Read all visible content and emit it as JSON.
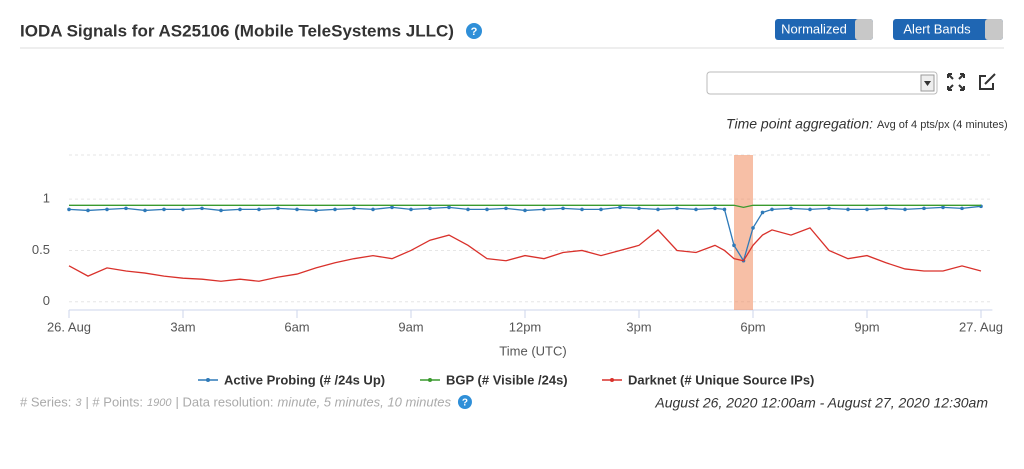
{
  "header": {
    "title": "IODA Signals for AS25106 (Mobile TeleSystems JLLC)",
    "buttons": [
      "Normalized",
      "Alert Bands"
    ]
  },
  "aggregation": {
    "label": "Time point aggregation:",
    "detail": "Avg of 4 pts/px (4 minutes)"
  },
  "chart_data": {
    "type": "line",
    "x": [
      0,
      0.5,
      1,
      1.5,
      2,
      2.5,
      3,
      3.5,
      4,
      4.5,
      5,
      5.5,
      6,
      6.5,
      7,
      7.5,
      8,
      8.5,
      9,
      9.5,
      10,
      10.5,
      11,
      11.5,
      12,
      12.5,
      13,
      13.5,
      14,
      14.5,
      15,
      15.5,
      16,
      16.5,
      17,
      17.25,
      17.5,
      17.75,
      18,
      18.25,
      18.5,
      19,
      19.5,
      20,
      20.5,
      21,
      21.5,
      22,
      22.5,
      23,
      23.5,
      24
    ],
    "series": [
      {
        "name": "Active Probing (# /24s Up)",
        "color": "#2f7ab8",
        "markers": true,
        "values": [
          0.9,
          0.89,
          0.9,
          0.91,
          0.89,
          0.9,
          0.9,
          0.91,
          0.89,
          0.9,
          0.9,
          0.91,
          0.9,
          0.89,
          0.9,
          0.91,
          0.9,
          0.92,
          0.9,
          0.91,
          0.92,
          0.9,
          0.9,
          0.91,
          0.89,
          0.9,
          0.91,
          0.9,
          0.9,
          0.92,
          0.91,
          0.9,
          0.91,
          0.9,
          0.91,
          0.9,
          0.55,
          0.4,
          0.72,
          0.87,
          0.9,
          0.91,
          0.9,
          0.91,
          0.9,
          0.9,
          0.91,
          0.9,
          0.91,
          0.92,
          0.91,
          0.93
        ]
      },
      {
        "name": "BGP (# Visible /24s)",
        "color": "#3a9a2e",
        "markers": false,
        "values": [
          0.94,
          0.94,
          0.94,
          0.94,
          0.94,
          0.94,
          0.94,
          0.94,
          0.94,
          0.94,
          0.94,
          0.94,
          0.94,
          0.94,
          0.94,
          0.94,
          0.94,
          0.94,
          0.94,
          0.94,
          0.94,
          0.94,
          0.94,
          0.94,
          0.94,
          0.94,
          0.94,
          0.94,
          0.94,
          0.94,
          0.94,
          0.94,
          0.94,
          0.94,
          0.94,
          0.94,
          0.94,
          0.92,
          0.94,
          0.94,
          0.94,
          0.94,
          0.94,
          0.94,
          0.94,
          0.94,
          0.94,
          0.94,
          0.94,
          0.94,
          0.94,
          0.94
        ]
      },
      {
        "name": "Darknet (# Unique Source IPs)",
        "color": "#d9312b",
        "markers": false,
        "values": [
          0.35,
          0.25,
          0.33,
          0.3,
          0.28,
          0.25,
          0.23,
          0.22,
          0.2,
          0.22,
          0.2,
          0.24,
          0.27,
          0.33,
          0.38,
          0.42,
          0.45,
          0.42,
          0.5,
          0.6,
          0.65,
          0.55,
          0.42,
          0.4,
          0.45,
          0.42,
          0.48,
          0.5,
          0.45,
          0.5,
          0.55,
          0.7,
          0.5,
          0.48,
          0.55,
          0.5,
          0.42,
          0.4,
          0.55,
          0.65,
          0.7,
          0.65,
          0.72,
          0.5,
          0.42,
          0.45,
          0.38,
          0.32,
          0.3,
          0.3,
          0.35,
          0.3
        ]
      }
    ],
    "alert_band": [
      17.5,
      18.0
    ],
    "xlim": [
      0,
      24.3
    ],
    "ylim": [
      -0.08,
      1.43
    ],
    "xticks": [
      {
        "value": 0,
        "label": "26. Aug"
      },
      {
        "value": 3,
        "label": "3am"
      },
      {
        "value": 6,
        "label": "6am"
      },
      {
        "value": 9,
        "label": "9am"
      },
      {
        "value": 12,
        "label": "12pm"
      },
      {
        "value": 15,
        "label": "3pm"
      },
      {
        "value": 18,
        "label": "6pm"
      },
      {
        "value": 21,
        "label": "9pm"
      },
      {
        "value": 24,
        "label": "27. Aug"
      }
    ],
    "yticks": [
      0,
      0.5,
      1
    ],
    "grid": true,
    "xlabel": "Time (UTC)"
  },
  "footer": {
    "series_label": "# Series:",
    "series": 3,
    "points_label": "| # Points:",
    "points": 1900,
    "resolution_label": "| Data resolution:",
    "resolution": "minute, 5 minutes, 10 minutes",
    "range": "August 26, 2020 12:00am - August 27, 2020 12:30am"
  }
}
